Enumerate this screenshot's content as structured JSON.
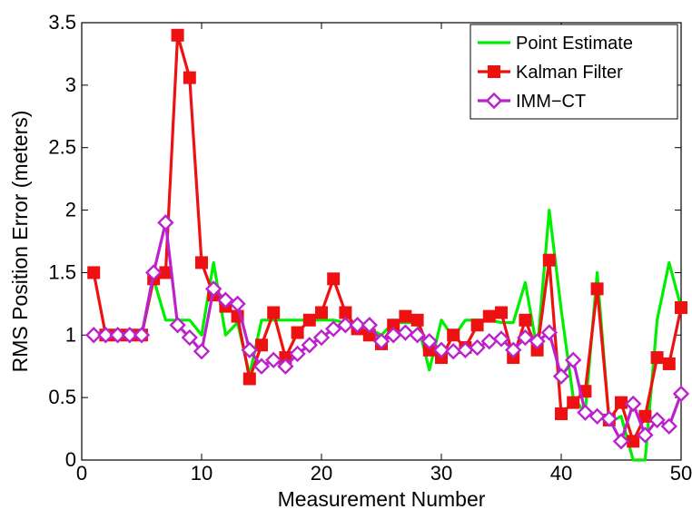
{
  "chart_data": {
    "type": "line",
    "xlabel": "Measurement Number",
    "ylabel": "RMS Position Error (meters)",
    "xlim": [
      0,
      50
    ],
    "ylim": [
      0,
      3.5
    ],
    "x_ticks": [
      "0",
      "10",
      "20",
      "30",
      "40",
      "50"
    ],
    "y_ticks": [
      "0",
      "0.5",
      "1",
      "1.5",
      "2",
      "2.5",
      "3",
      "3.5"
    ],
    "grid": false,
    "legend_position": "top-right",
    "x": [
      1,
      2,
      3,
      4,
      5,
      6,
      7,
      8,
      9,
      10,
      11,
      12,
      13,
      14,
      15,
      16,
      17,
      18,
      19,
      20,
      21,
      22,
      23,
      24,
      25,
      26,
      27,
      28,
      29,
      30,
      31,
      32,
      33,
      34,
      35,
      36,
      37,
      38,
      39,
      40,
      41,
      42,
      43,
      44,
      45,
      46,
      47,
      48,
      49,
      50
    ],
    "series": [
      {
        "name": "Point Estimate",
        "color": "#00ee00",
        "marker": "none",
        "values": [
          1.0,
          1.0,
          1.0,
          1.0,
          1.0,
          1.45,
          1.12,
          1.12,
          1.12,
          1.0,
          1.58,
          1.0,
          1.1,
          0.68,
          1.12,
          1.12,
          1.12,
          1.12,
          1.12,
          1.12,
          1.12,
          1.1,
          1.1,
          1.05,
          1.0,
          1.1,
          1.1,
          1.1,
          0.72,
          1.12,
          0.98,
          1.12,
          1.12,
          1.12,
          1.1,
          1.1,
          1.42,
          0.88,
          2.0,
          1.2,
          0.5,
          0.38,
          1.5,
          0.3,
          0.35,
          0.0,
          0.0,
          1.12,
          1.58,
          1.22
        ]
      },
      {
        "name": "Kalman Filter",
        "color": "#ee1111",
        "marker": "square",
        "values": [
          1.5,
          1.0,
          1.0,
          1.0,
          1.0,
          1.45,
          1.5,
          3.4,
          3.06,
          1.58,
          1.32,
          1.23,
          1.15,
          0.65,
          0.92,
          1.18,
          0.82,
          1.02,
          1.12,
          1.18,
          1.45,
          1.18,
          1.05,
          1.0,
          0.93,
          1.08,
          1.15,
          1.12,
          0.88,
          0.82,
          1.0,
          0.9,
          1.08,
          1.15,
          1.18,
          0.82,
          1.12,
          0.88,
          1.6,
          0.37,
          0.46,
          0.55,
          1.37,
          0.32,
          0.46,
          0.15,
          0.35,
          0.82,
          0.77,
          1.22
        ]
      },
      {
        "name": "IMM−CT",
        "color": "#bb22cc",
        "marker": "diamond",
        "values": [
          1.0,
          1.0,
          1.0,
          1.0,
          1.0,
          1.5,
          1.9,
          1.08,
          0.98,
          0.87,
          1.37,
          1.28,
          1.25,
          0.88,
          0.75,
          0.8,
          0.75,
          0.85,
          0.92,
          0.98,
          1.05,
          1.08,
          1.08,
          1.08,
          0.95,
          1.0,
          1.02,
          1.0,
          0.95,
          0.88,
          0.87,
          0.88,
          0.9,
          0.95,
          0.97,
          0.88,
          0.98,
          0.95,
          1.02,
          0.67,
          0.8,
          0.38,
          0.35,
          0.33,
          0.15,
          0.45,
          0.2,
          0.32,
          0.27,
          0.53
        ]
      }
    ]
  }
}
